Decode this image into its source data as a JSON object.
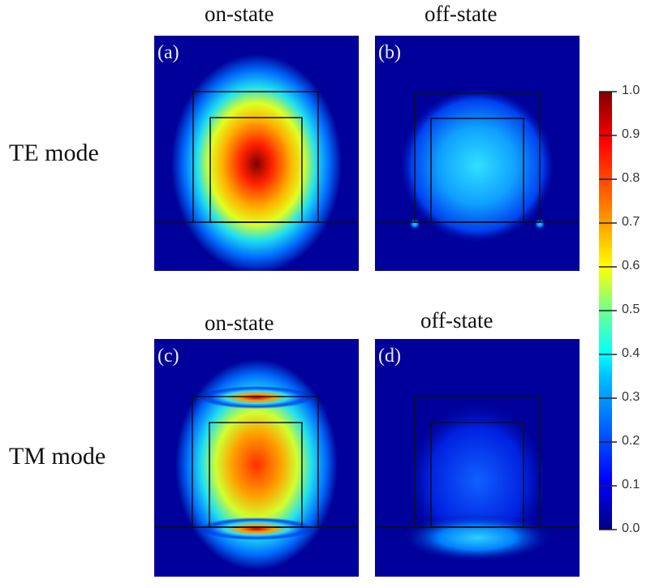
{
  "chart_data": {
    "type": "heatmap",
    "title": "",
    "column_headers": [
      "on-state",
      "off-state",
      "on-state",
      "off-state"
    ],
    "row_labels": [
      "TE mode",
      "TM mode"
    ],
    "panels": [
      {
        "label": "(a)",
        "mode": "TE",
        "state": "on",
        "peak": 1.0,
        "description_values": {
          "core_max": 1.0
        }
      },
      {
        "label": "(b)",
        "mode": "TE",
        "state": "off",
        "peak": 0.35
      },
      {
        "label": "(c)",
        "mode": "TM",
        "state": "on",
        "peak": 0.85
      },
      {
        "label": "(d)",
        "mode": "TM",
        "state": "off",
        "peak": 0.3
      }
    ],
    "colorbar": {
      "range": [
        0.0,
        1.0
      ],
      "ticks": [
        "1.0",
        "0.9",
        "0.8",
        "0.7",
        "0.6",
        "0.5",
        "0.4",
        "0.3",
        "0.2",
        "0.1",
        "0.0"
      ],
      "colormap": "jet"
    }
  }
}
